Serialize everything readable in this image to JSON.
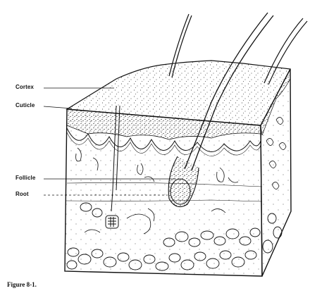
{
  "labels": {
    "cortex": "Cortex",
    "cuticle": "Cuticle",
    "follicle": "Follicle",
    "root": "Root"
  },
  "caption": "Figure 8-1.",
  "colors": {
    "ink": "#111111",
    "paper": "#ffffff"
  }
}
